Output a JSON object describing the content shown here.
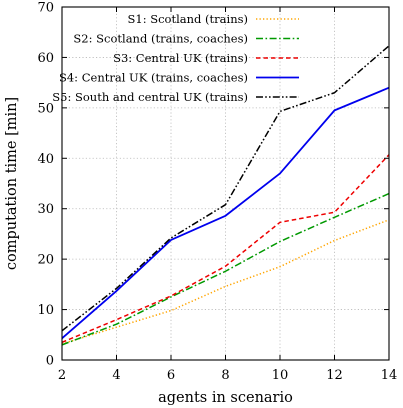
{
  "chart_data": {
    "type": "line",
    "x": [
      2,
      4,
      6,
      8,
      10,
      12,
      14
    ],
    "xlabel": "agents in scenario",
    "ylabel": "computation time [min]",
    "xlim": [
      2,
      14
    ],
    "ylim": [
      0,
      70
    ],
    "xticks": [
      "2",
      "4",
      "6",
      "8",
      "10",
      "12",
      "14"
    ],
    "yticks": [
      "0",
      "10",
      "20",
      "30",
      "40",
      "50",
      "60",
      "70"
    ],
    "grid": true,
    "legend_position": "top-left",
    "series": [
      {
        "name": "S1: Scotland (trains)",
        "color": "#ffa500",
        "dash": "dotted",
        "values": [
          3.2,
          6.5,
          9.8,
          14.6,
          18.5,
          23.7,
          27.8
        ]
      },
      {
        "name": "S2: Scotland (trains, coaches)",
        "color": "#009900",
        "dash": "dashdot",
        "values": [
          3.0,
          7.1,
          12.5,
          17.6,
          23.5,
          28.3,
          33.0
        ]
      },
      {
        "name": "S3: Central UK (trains)",
        "color": "#ee0000",
        "dash": "dashed",
        "values": [
          3.5,
          8.0,
          12.7,
          18.6,
          27.3,
          29.3,
          40.7
        ]
      },
      {
        "name": "S4: Central UK (trains, coaches)",
        "color": "#0000ee",
        "dash": "solid",
        "values": [
          4.3,
          13.7,
          23.8,
          28.6,
          37.0,
          49.5,
          54.0
        ]
      },
      {
        "name": "S5: South and central UK (trains)",
        "color": "#000000",
        "dash": "dashdotdot",
        "values": [
          5.8,
          14.2,
          24.2,
          30.8,
          49.3,
          53.0,
          62.3
        ]
      }
    ]
  }
}
